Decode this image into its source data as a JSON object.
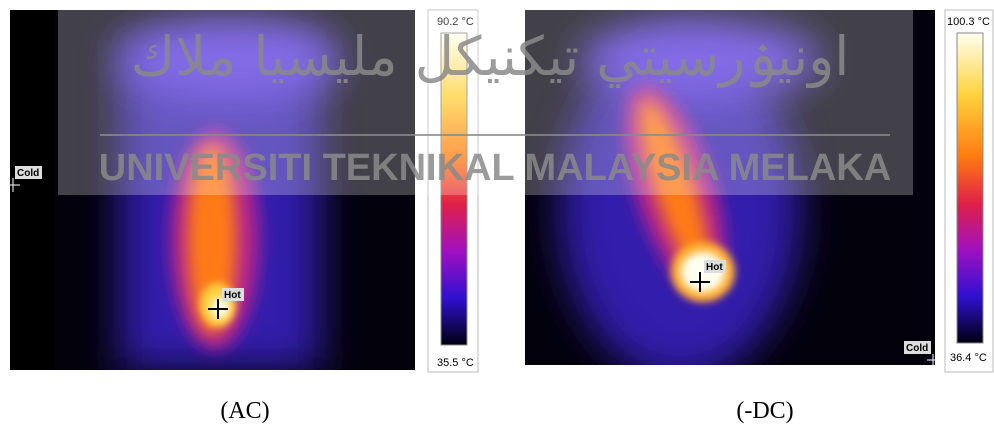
{
  "panels": [
    {
      "max_temp": "90.2 °C",
      "min_temp": "35.5 °C",
      "cold_label": "Cold",
      "hot_label": "Hot",
      "caption": "(AC)"
    },
    {
      "max_temp": "100.3 °C",
      "min_temp": "36.4 °C",
      "cold_label": "Cold",
      "hot_label": "Hot",
      "caption": "(-DC)"
    }
  ],
  "watermark": {
    "arabic": "اونيۏرسيتي تيكنيكل مليسيا ملاك",
    "latin": "UNIVERSITI TEKNIKAL MALAYSIA MELAKA"
  }
}
